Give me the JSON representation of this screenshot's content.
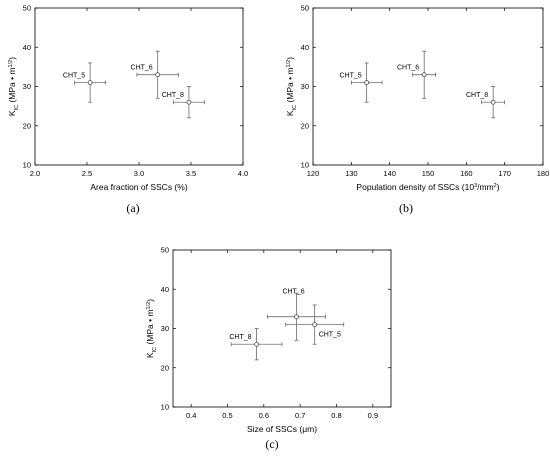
{
  "chart_data": [
    {
      "type": "scatter",
      "caption": "(a)",
      "xlabel": "Area fraction of SSCs (%)",
      "ylabel_main": "K",
      "ylabel_sub": "IC",
      "ylabel_units": "(MPa • m",
      "ylabel_exp": "1/2",
      "ylabel_close": ")",
      "xlim": [
        2.0,
        4.0
      ],
      "ylim": [
        10,
        50
      ],
      "xticks": [
        2.0,
        2.5,
        3.0,
        3.5,
        4.0
      ],
      "yticks": [
        10,
        20,
        30,
        40,
        50
      ],
      "x_decimals": 1,
      "points": [
        {
          "label": "CHT_5",
          "x": 2.53,
          "y": 31,
          "xerr": 0.15,
          "yerr": 5,
          "label_pos": "left"
        },
        {
          "label": "CHT_6",
          "x": 3.18,
          "y": 33,
          "xerr": 0.2,
          "yerr": 6,
          "label_pos": "left"
        },
        {
          "label": "CHT_8",
          "x": 3.48,
          "y": 26,
          "xerr": 0.15,
          "yerr": 4,
          "label_pos": "left"
        }
      ]
    },
    {
      "type": "scatter",
      "caption": "(b)",
      "xlabel_pre": "Population density of SSCs (10",
      "xlabel_exp": "3",
      "xlabel_post": "/mm",
      "xlabel_exp2": "2",
      "xlabel_close": ")",
      "ylabel_main": "K",
      "ylabel_sub": "IC",
      "ylabel_units": "(MPa • m",
      "ylabel_exp": "1/2",
      "ylabel_close": ")",
      "xlim": [
        120,
        180
      ],
      "ylim": [
        10,
        50
      ],
      "xticks": [
        120,
        130,
        140,
        150,
        160,
        170,
        180
      ],
      "yticks": [
        10,
        20,
        30,
        40,
        50
      ],
      "x_decimals": 0,
      "points": [
        {
          "label": "CHT_5",
          "x": 134,
          "y": 31,
          "xerr": 4,
          "yerr": 5,
          "label_pos": "left"
        },
        {
          "label": "CHT_6",
          "x": 149,
          "y": 33,
          "xerr": 3,
          "yerr": 6,
          "label_pos": "left"
        },
        {
          "label": "CHT_8",
          "x": 167,
          "y": 26,
          "xerr": 3,
          "yerr": 4,
          "label_pos": "left"
        }
      ]
    },
    {
      "type": "scatter",
      "caption": "(c)",
      "xlabel": "Size of SSCs (μm)",
      "ylabel_main": "K",
      "ylabel_sub": "IC",
      "ylabel_units": "(MPa • m",
      "ylabel_exp": "1/2",
      "ylabel_close": ")",
      "xlim": [
        0.35,
        0.95
      ],
      "ylim": [
        10,
        50
      ],
      "xticks": [
        0.4,
        0.5,
        0.6,
        0.7,
        0.8,
        0.9
      ],
      "yticks": [
        10,
        20,
        30,
        40,
        50
      ],
      "x_decimals": 1,
      "points": [
        {
          "label": "CHT_8",
          "x": 0.58,
          "y": 26,
          "xerr": 0.07,
          "yerr": 4,
          "label_pos": "left"
        },
        {
          "label": "CHT_6",
          "x": 0.69,
          "y": 33,
          "xerr": 0.08,
          "yerr": 6,
          "label_pos": "above"
        },
        {
          "label": "CHT_5",
          "x": 0.74,
          "y": 31,
          "xerr": 0.08,
          "yerr": 5,
          "label_pos": "below-right"
        }
      ]
    }
  ]
}
